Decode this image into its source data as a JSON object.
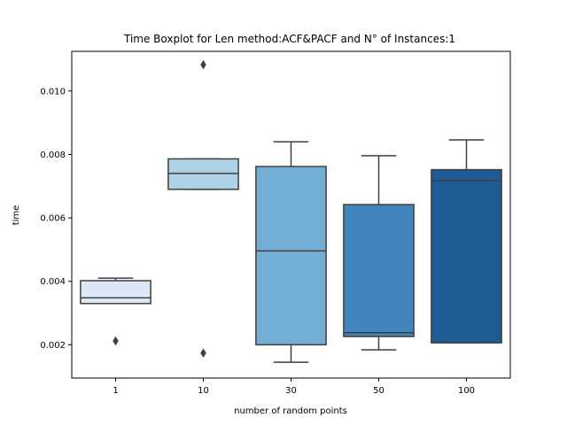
{
  "chart_data": {
    "type": "box",
    "title": "Time Boxplot for Len method:ACF&PACF and N° of Instances:1",
    "xlabel": "number of random points",
    "ylabel": "time",
    "categories": [
      "1",
      "10",
      "30",
      "50",
      "100"
    ],
    "ylim": [
      0.00095,
      0.01125
    ],
    "yticks": [
      0.002,
      0.004,
      0.006,
      0.008,
      0.01
    ],
    "ytick_labels": [
      "0.002",
      "0.004",
      "0.006",
      "0.008",
      "0.010"
    ],
    "grid": false,
    "legend": "none",
    "boxes": [
      {
        "category": "1",
        "whisker_low": 0.0033,
        "q1": 0.0033,
        "median": 0.00348,
        "q3": 0.00402,
        "whisker_high": 0.0041,
        "outliers": [
          0.00212
        ],
        "color": "#dbe9f6"
      },
      {
        "category": "10",
        "whisker_low": 0.0069,
        "q1": 0.0069,
        "median": 0.0074,
        "q3": 0.00786,
        "whisker_high": 0.00786,
        "outliers": [
          0.01083,
          0.00174
        ],
        "color": "#b0d2e7"
      },
      {
        "category": "30",
        "whisker_low": 0.00145,
        "q1": 0.002,
        "median": 0.00496,
        "q3": 0.00762,
        "whisker_high": 0.0084,
        "outliers": [],
        "color": "#75aed4"
      },
      {
        "category": "50",
        "whisker_low": 0.00184,
        "q1": 0.00226,
        "median": 0.00238,
        "q3": 0.00642,
        "whisker_high": 0.00796,
        "outliers": [],
        "color": "#4286bf"
      },
      {
        "category": "100",
        "whisker_low": 0.00206,
        "q1": 0.00206,
        "median": 0.00718,
        "q3": 0.00752,
        "whisker_high": 0.00846,
        "outliers": [],
        "color": "#1f5c96"
      }
    ]
  }
}
